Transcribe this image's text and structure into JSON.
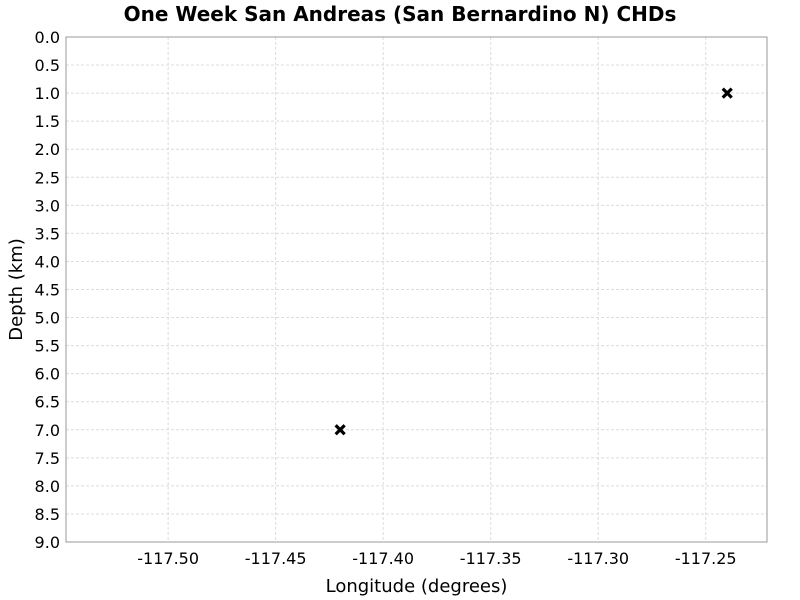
{
  "chart_data": {
    "type": "scatter",
    "title": "One Week San Andreas (San Bernardino N) CHDs",
    "xlabel": "Longitude (degrees)",
    "ylabel": "Depth (km)",
    "xlim": [
      -117.5475,
      -117.2215
    ],
    "ylim": [
      0.0,
      9.0
    ],
    "y_inverted": true,
    "grid": true,
    "marker": "x",
    "marker_color": "#000000",
    "x_ticks": [
      -117.5,
      -117.45,
      -117.4,
      -117.35,
      -117.3,
      -117.25
    ],
    "x_tick_labels": [
      "-117.50",
      "-117.45",
      "-117.40",
      "-117.35",
      "-117.30",
      "-117.25"
    ],
    "y_ticks": [
      0.0,
      0.5,
      1.0,
      1.5,
      2.0,
      2.5,
      3.0,
      3.5,
      4.0,
      4.5,
      5.0,
      5.5,
      6.0,
      6.5,
      7.0,
      7.5,
      8.0,
      8.5,
      9.0
    ],
    "y_tick_labels": [
      "0.0",
      "0.5",
      "1.0",
      "1.5",
      "2.0",
      "2.5",
      "3.0",
      "3.5",
      "4.0",
      "4.5",
      "5.0",
      "5.5",
      "6.0",
      "6.5",
      "7.0",
      "7.5",
      "8.0",
      "8.5",
      "9.0"
    ],
    "points": [
      {
        "x": -117.24,
        "y": 1.0
      },
      {
        "x": -117.42,
        "y": 7.0
      }
    ]
  }
}
